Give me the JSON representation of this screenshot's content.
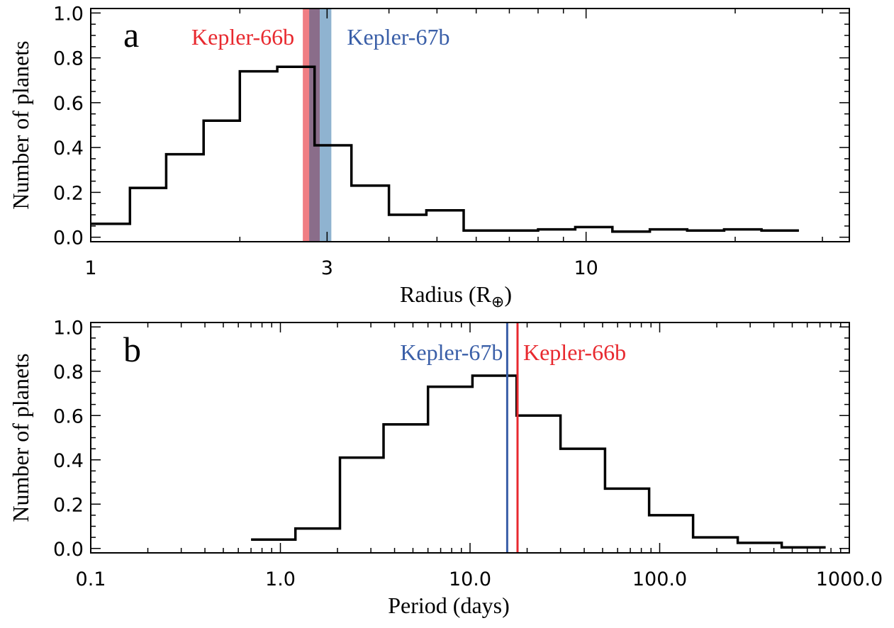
{
  "chart_data": [
    {
      "type": "histogram",
      "panel_label": "a",
      "xlabel": "Radius (R",
      "xlabel_subscript": "⊕",
      "xlabel_close": ")",
      "ylabel": "Number of planets",
      "xscale": "log",
      "xlim": [
        1,
        34
      ],
      "ylim": [
        -0.02,
        1.02
      ],
      "xticks": [
        1,
        3,
        10
      ],
      "xtick_labels": [
        "1",
        "3",
        "10"
      ],
      "yticks": [
        0.0,
        0.2,
        0.4,
        0.6,
        0.8,
        1.0
      ],
      "ytick_labels": [
        "0.0",
        "0.2",
        "0.4",
        "0.6",
        "0.8",
        "1.0"
      ],
      "bin_edges": [
        1.0,
        1.2,
        1.42,
        1.69,
        2.0,
        2.38,
        2.83,
        3.36,
        4.0,
        4.76,
        5.66,
        6.73,
        8.0,
        9.51,
        11.3,
        13.45,
        16.0,
        19.0,
        22.6,
        26.9
      ],
      "values": [
        0.06,
        0.22,
        0.37,
        0.52,
        0.74,
        0.76,
        0.41,
        0.23,
        0.1,
        0.12,
        0.03,
        0.03,
        0.035,
        0.045,
        0.025,
        0.035,
        0.03,
        0.035,
        0.03
      ],
      "annotations": [
        {
          "label": "Kepler-66b",
          "color": "#e8292f",
          "band": [
            2.68,
            2.9
          ]
        },
        {
          "label": "Kepler-67b",
          "color": "#3a5fa8",
          "band": [
            2.76,
            3.06
          ]
        }
      ],
      "band_colors": {
        "Kepler-66b": "#f07e84",
        "Kepler-67b": "#8fb3d0",
        "overlap": "#8a6d8a"
      }
    },
    {
      "type": "histogram",
      "panel_label": "b",
      "xlabel": "Period (days)",
      "ylabel": "Number of planets",
      "xscale": "log",
      "xlim": [
        0.1,
        1000
      ],
      "ylim": [
        -0.02,
        1.02
      ],
      "xticks": [
        0.1,
        1.0,
        10.0,
        100.0,
        1000.0
      ],
      "xtick_labels": [
        "0.1",
        "1.0",
        "10.0",
        "100.0",
        "1000.0"
      ],
      "yticks": [
        0.0,
        0.2,
        0.4,
        0.6,
        0.8,
        1.0
      ],
      "ytick_labels": [
        "0.0",
        "0.2",
        "0.4",
        "0.6",
        "0.8",
        "1.0"
      ],
      "bin_edges": [
        0.7,
        1.2,
        2.06,
        3.5,
        6.0,
        10.3,
        17.6,
        30.0,
        51.5,
        88.0,
        150.0,
        258.0,
        440.0,
        750.0
      ],
      "values": [
        0.04,
        0.09,
        0.41,
        0.56,
        0.73,
        0.78,
        0.6,
        0.45,
        0.27,
        0.15,
        0.05,
        0.025,
        0.005
      ],
      "annotations": [
        {
          "label": "Kepler-67b",
          "color": "#3a5fa8",
          "x": 15.7
        },
        {
          "label": "Kepler-66b",
          "color": "#e8292f",
          "x": 17.8
        }
      ]
    }
  ]
}
